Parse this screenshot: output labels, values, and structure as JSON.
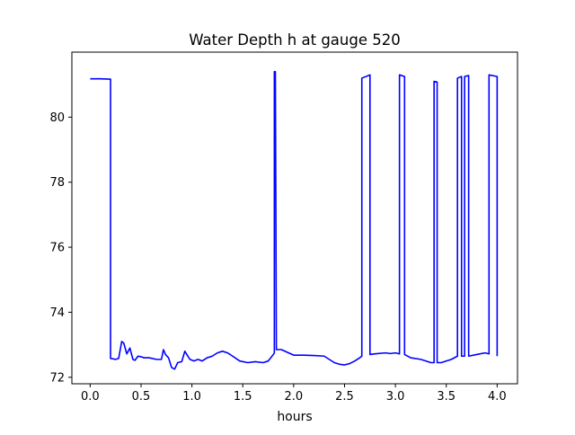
{
  "chart_data": {
    "type": "line",
    "title": "Water Depth h at gauge 520",
    "xlabel": "hours",
    "ylabel": "",
    "xlim": [
      -0.18,
      4.2
    ],
    "ylim": [
      71.8,
      82.0
    ],
    "xticks": [
      0.0,
      0.5,
      1.0,
      1.5,
      2.0,
      2.5,
      3.0,
      3.5,
      4.0
    ],
    "xtick_labels": [
      "0.0",
      "0.5",
      "1.0",
      "1.5",
      "2.0",
      "2.5",
      "3.0",
      "3.5",
      "4.0"
    ],
    "yticks": [
      72,
      74,
      76,
      78,
      80
    ],
    "ytick_labels": [
      "72",
      "74",
      "76",
      "78",
      "80"
    ],
    "grid": false,
    "series": [
      {
        "color": "#0000ff",
        "x": [
          0.0,
          0.1,
          0.19,
          0.2,
          0.2,
          0.25,
          0.28,
          0.31,
          0.33,
          0.36,
          0.39,
          0.42,
          0.44,
          0.47,
          0.5,
          0.53,
          0.58,
          0.65,
          0.7,
          0.72,
          0.74,
          0.77,
          0.8,
          0.83,
          0.86,
          0.9,
          0.93,
          0.95,
          0.98,
          1.02,
          1.06,
          1.1,
          1.15,
          1.2,
          1.25,
          1.3,
          1.35,
          1.4,
          1.47,
          1.55,
          1.62,
          1.7,
          1.75,
          1.8,
          1.81,
          1.81,
          1.82,
          1.83,
          1.88,
          1.95,
          2.0,
          2.1,
          2.2,
          2.3,
          2.35,
          2.4,
          2.45,
          2.5,
          2.55,
          2.6,
          2.65,
          2.67,
          2.67,
          2.75,
          2.75,
          2.8,
          2.9,
          2.95,
          3.0,
          3.04,
          3.04,
          3.09,
          3.09,
          3.15,
          3.25,
          3.35,
          3.38,
          3.38,
          3.41,
          3.41,
          3.45,
          3.55,
          3.61,
          3.61,
          3.65,
          3.65,
          3.68,
          3.68,
          3.72,
          3.72,
          3.8,
          3.88,
          3.92,
          3.92,
          4.0,
          4.0
        ],
        "y": [
          81.18,
          81.18,
          81.17,
          81.17,
          72.58,
          72.55,
          72.58,
          73.1,
          73.05,
          72.72,
          72.9,
          72.55,
          72.52,
          72.65,
          72.63,
          72.6,
          72.6,
          72.55,
          72.55,
          72.85,
          72.7,
          72.6,
          72.3,
          72.25,
          72.45,
          72.48,
          72.8,
          72.7,
          72.55,
          72.5,
          72.55,
          72.5,
          72.6,
          72.65,
          72.75,
          72.8,
          72.75,
          72.65,
          72.5,
          72.45,
          72.48,
          72.45,
          72.5,
          72.7,
          72.75,
          81.4,
          81.4,
          72.85,
          72.85,
          72.75,
          72.68,
          72.68,
          72.67,
          72.65,
          72.55,
          72.45,
          72.4,
          72.38,
          72.42,
          72.5,
          72.6,
          72.65,
          81.2,
          81.3,
          72.7,
          72.72,
          72.75,
          72.73,
          72.75,
          72.72,
          81.3,
          81.25,
          72.7,
          72.6,
          72.55,
          72.45,
          72.45,
          81.1,
          81.08,
          72.45,
          72.45,
          72.55,
          72.65,
          81.2,
          81.25,
          72.65,
          72.65,
          81.25,
          81.28,
          72.65,
          72.7,
          72.75,
          72.72,
          81.3,
          81.25,
          72.65
        ]
      }
    ]
  }
}
